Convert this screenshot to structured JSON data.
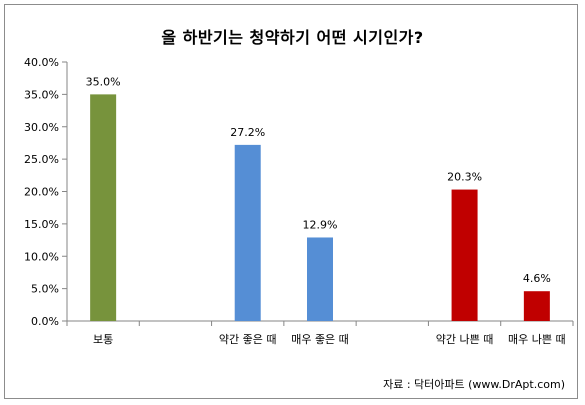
{
  "chart_data": {
    "type": "bar",
    "title": "올 하반기는 청약하기 어떤 시기인가?",
    "xlabel": "",
    "ylabel": "",
    "ylim": [
      0,
      40
    ],
    "yticks": [
      "0.0%",
      "5.0%",
      "10.0%",
      "15.0%",
      "20.0%",
      "25.0%",
      "30.0%",
      "35.0%",
      "40.0%"
    ],
    "categories": [
      "보통",
      "",
      "약간 좋은 때",
      "매우 좋은 때",
      "",
      "약간 나쁜 때",
      "매우 나쁜 때"
    ],
    "values": [
      35.0,
      null,
      27.2,
      12.9,
      null,
      20.3,
      4.6
    ],
    "value_labels": [
      "35.0%",
      "",
      "27.2%",
      "12.9%",
      "",
      "20.3%",
      "4.6%"
    ],
    "colors": [
      "#77933c",
      null,
      "#558ed5",
      "#558ed5",
      null,
      "#c00000",
      "#c00000"
    ],
    "grid": false,
    "legend": "none",
    "source": "자료 : 닥터아파트 (www.DrApt.com)"
  }
}
